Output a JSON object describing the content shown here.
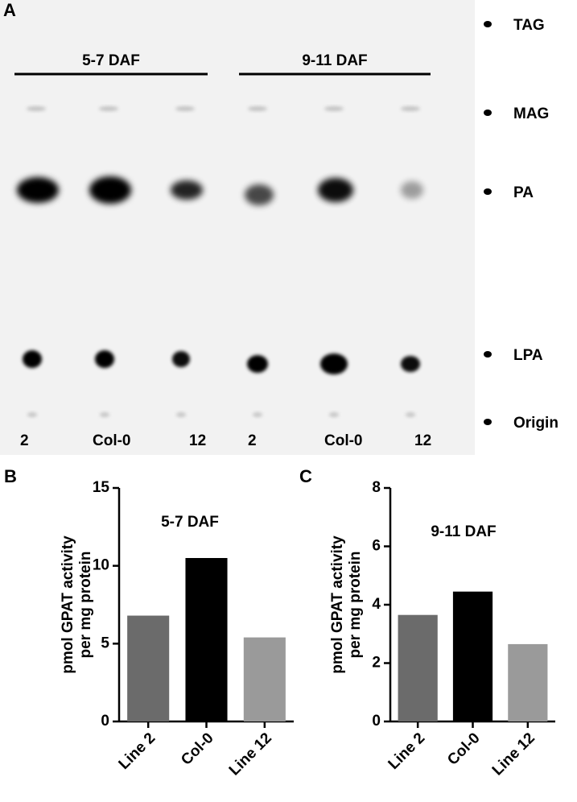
{
  "panel_a": {
    "label": "A",
    "groups": [
      "5-7 DAF",
      "9-11 DAF"
    ],
    "lanes": [
      "2",
      "Col-0",
      "12",
      "2",
      "Col-0",
      "12"
    ],
    "markers": [
      "TAG",
      "MAG",
      "PA",
      "LPA",
      "Origin"
    ]
  },
  "chart_data": [
    {
      "type": "bar",
      "panel_label": "B",
      "title": "5-7 DAF",
      "y_label": [
        "pmol GPAT activity",
        "per mg protein"
      ],
      "categories": [
        "Line 2",
        "Col-0",
        "Line 12"
      ],
      "values": [
        6.8,
        10.5,
        5.4
      ],
      "colors": [
        "#6b6b6b",
        "#000000",
        "#9a9a9a"
      ],
      "ylim": [
        0,
        15
      ],
      "yticks": [
        0,
        5,
        10,
        15
      ]
    },
    {
      "type": "bar",
      "panel_label": "C",
      "title": "9-11 DAF",
      "y_label": [
        "pmol GPAT activity",
        "per mg protein"
      ],
      "categories": [
        "Line 2",
        "Col-0",
        "Line 12"
      ],
      "values": [
        3.65,
        4.45,
        2.65
      ],
      "colors": [
        "#6b6b6b",
        "#000000",
        "#9a9a9a"
      ],
      "ylim": [
        0,
        8
      ],
      "yticks": [
        0,
        2,
        4,
        6,
        8
      ]
    }
  ]
}
